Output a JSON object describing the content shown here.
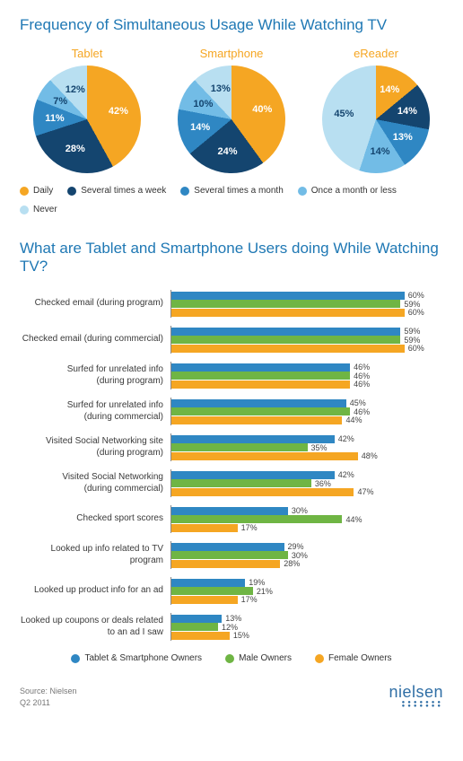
{
  "colors": {
    "title_blue": "#1f78b4",
    "accent_orange": "#f5a623",
    "daily": "#f5a623",
    "several_week": "#14456f",
    "several_month": "#2f87c3",
    "once_month": "#72bce6",
    "never": "#b8dff1",
    "bar_tablet": "#2f87c3",
    "bar_male": "#6fb544",
    "bar_female": "#f5a623",
    "text_gray": "#3a3a3a"
  },
  "section1": {
    "title": "Frequency of Simultaneous Usage While Watching TV",
    "pies": [
      {
        "name": "Tablet",
        "slices": [
          {
            "label": "42%",
            "value": 42,
            "colorKey": "daily"
          },
          {
            "label": "28%",
            "value": 28,
            "colorKey": "several_week"
          },
          {
            "label": "11%",
            "value": 11,
            "colorKey": "several_month"
          },
          {
            "label": "7%",
            "value": 7,
            "colorKey": "once_month"
          },
          {
            "label": "12%",
            "value": 12,
            "colorKey": "never"
          }
        ]
      },
      {
        "name": "Smartphone",
        "slices": [
          {
            "label": "40%",
            "value": 40,
            "colorKey": "daily"
          },
          {
            "label": "24%",
            "value": 24,
            "colorKey": "several_week"
          },
          {
            "label": "14%",
            "value": 14,
            "colorKey": "several_month"
          },
          {
            "label": "10%",
            "value": 10,
            "colorKey": "once_month"
          },
          {
            "label": "13%",
            "value": 13,
            "colorKey": "never"
          }
        ]
      },
      {
        "name": "eReader",
        "slices": [
          {
            "label": "14%",
            "value": 14,
            "colorKey": "daily"
          },
          {
            "label": "14%",
            "value": 14,
            "colorKey": "several_week"
          },
          {
            "label": "13%",
            "value": 13,
            "colorKey": "several_month"
          },
          {
            "label": "14%",
            "value": 14,
            "colorKey": "once_month"
          },
          {
            "label": "45%",
            "value": 45,
            "colorKey": "never"
          }
        ]
      }
    ],
    "legend": [
      {
        "label": "Daily",
        "colorKey": "daily"
      },
      {
        "label": "Several times a week",
        "colorKey": "several_week"
      },
      {
        "label": "Several times a month",
        "colorKey": "several_month"
      },
      {
        "label": "Once a month or less",
        "colorKey": "once_month"
      },
      {
        "label": "Never",
        "colorKey": "never"
      }
    ]
  },
  "section2": {
    "title": "What are Tablet and Smartphone Users doing While Watching TV?",
    "max": 70,
    "seriesColors": [
      "bar_tablet",
      "bar_male",
      "bar_female"
    ],
    "rows": [
      {
        "label": "Checked email (during program)",
        "values": [
          60,
          59,
          60
        ]
      },
      {
        "label": "Checked email (during commercial)",
        "values": [
          59,
          59,
          60
        ]
      },
      {
        "label": "Surfed for unrelated info\n(during program)",
        "values": [
          46,
          46,
          46
        ]
      },
      {
        "label": "Surfed for unrelated info\n(during commercial)",
        "values": [
          45,
          46,
          44
        ]
      },
      {
        "label": "Visited Social Networking site\n(during program)",
        "values": [
          42,
          35,
          48
        ]
      },
      {
        "label": "Visited Social Networking\n(during commercial)",
        "values": [
          42,
          36,
          47
        ]
      },
      {
        "label": "Checked sport scores",
        "values": [
          30,
          44,
          17
        ]
      },
      {
        "label": "Looked up info related to TV program",
        "values": [
          29,
          30,
          28
        ]
      },
      {
        "label": "Looked up product info for an ad",
        "values": [
          19,
          21,
          17
        ]
      },
      {
        "label": "Looked up coupons or deals related\nto an ad I saw",
        "values": [
          13,
          12,
          15
        ]
      }
    ],
    "legend": [
      {
        "label": "Tablet & Smartphone Owners",
        "colorKey": "bar_tablet"
      },
      {
        "label": "Male Owners",
        "colorKey": "bar_male"
      },
      {
        "label": "Female Owners",
        "colorKey": "bar_female"
      }
    ]
  },
  "footer": {
    "source1": "Source: Nielsen",
    "source2": "Q2 2011",
    "brand": "nielsen"
  }
}
